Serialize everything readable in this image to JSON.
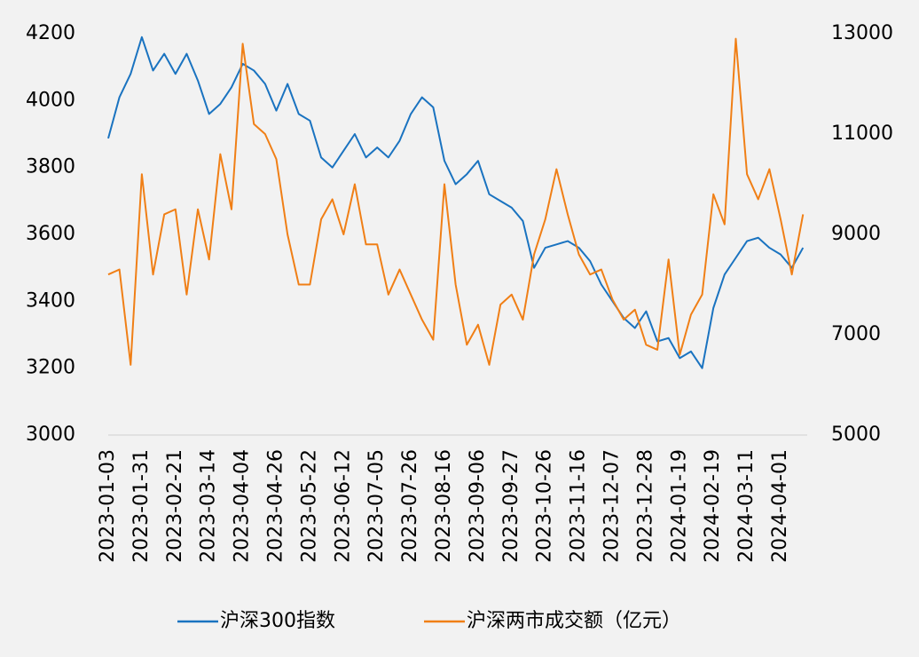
{
  "chart_data": {
    "type": "line",
    "categories": [
      "2023-01-03",
      null,
      null,
      "2023-01-31",
      null,
      null,
      "2023-02-21",
      null,
      null,
      "2023-03-14",
      null,
      null,
      "2023-04-04",
      null,
      null,
      "2023-04-26",
      null,
      null,
      "2023-05-22",
      null,
      null,
      "2023-06-12",
      null,
      null,
      "2023-07-05",
      null,
      null,
      "2023-07-26",
      null,
      null,
      "2023-08-16",
      null,
      null,
      "2023-09-06",
      null,
      null,
      "2023-09-27",
      null,
      null,
      "2023-10-26",
      null,
      null,
      "2023-11-16",
      null,
      null,
      "2023-12-07",
      null,
      null,
      "2023-12-28",
      null,
      null,
      "2024-01-19",
      null,
      null,
      "2024-02-19",
      null,
      null,
      "2024-03-11",
      null,
      null,
      "2024-04-01",
      null,
      null
    ],
    "series": [
      {
        "name": "沪深300指数",
        "color": "#1a73c0",
        "axis": "y",
        "values": [
          3887,
          4010,
          4080,
          4190,
          4090,
          4140,
          4080,
          4140,
          4060,
          3960,
          3990,
          4040,
          4110,
          4090,
          4050,
          3970,
          4050,
          3960,
          3940,
          3830,
          3800,
          3850,
          3900,
          3830,
          3860,
          3830,
          3880,
          3960,
          4010,
          3980,
          3820,
          3750,
          3780,
          3820,
          3720,
          3700,
          3680,
          3640,
          3500,
          3560,
          3570,
          3580,
          3560,
          3520,
          3450,
          3400,
          3350,
          3320,
          3370,
          3280,
          3290,
          3230,
          3250,
          3200,
          3380,
          3480,
          3530,
          3580,
          3590,
          3560,
          3540,
          3500,
          3560
        ]
      },
      {
        "name": "沪深两市成交额（亿元）",
        "color": "#f07f16",
        "axis": "y2",
        "values": [
          8200,
          8300,
          6400,
          10200,
          8200,
          9400,
          9500,
          7800,
          9500,
          8500,
          10600,
          9500,
          12800,
          11200,
          11000,
          10500,
          9000,
          8000,
          8000,
          9300,
          9700,
          9000,
          10000,
          8800,
          8800,
          7800,
          8300,
          7800,
          7300,
          6900,
          10000,
          8000,
          6800,
          7200,
          6400,
          7600,
          7800,
          7300,
          8600,
          9300,
          10300,
          9400,
          8600,
          8200,
          8300,
          7700,
          7300,
          7500,
          6800,
          6700,
          8500,
          6600,
          7400,
          7800,
          9800,
          9200,
          12900,
          10200,
          9700,
          10300,
          9300,
          8200,
          9400
        ]
      }
    ],
    "ylim": [
      3000,
      4200
    ],
    "yticks": [
      3000,
      3200,
      3400,
      3600,
      3800,
      4000,
      4200
    ],
    "y2lim": [
      5000,
      13000
    ],
    "y2ticks": [
      5000,
      7000,
      9000,
      11000,
      13000
    ],
    "legend": "bottom",
    "grid": false
  }
}
